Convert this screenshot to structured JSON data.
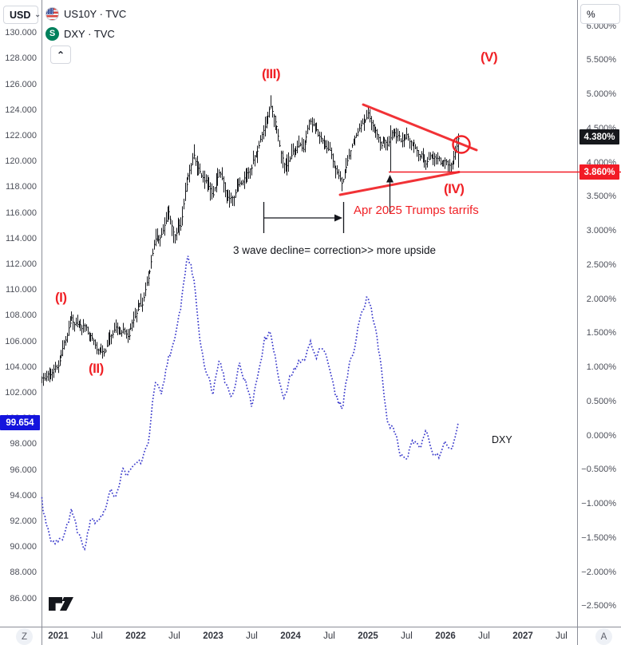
{
  "header": {
    "left_axis_unit_button": "USD",
    "right_axis_unit_button": "%",
    "icons": {
      "chevron_down": "⌄",
      "chevron_up": "⌃"
    }
  },
  "legend": {
    "items": [
      {
        "display": "US10Y · TVC",
        "icon": "us-flag-icon",
        "icon_text": ""
      },
      {
        "display": "DXY · TVC",
        "icon": "s-circle-icon",
        "icon_text": "S"
      }
    ]
  },
  "price_labels": {
    "us10y_last": "4.380%",
    "support": "3.860%",
    "dxy_last": "99.654"
  },
  "left_axis_ticks": [
    "130.000",
    "128.000",
    "126.000",
    "124.000",
    "122.000",
    "120.000",
    "118.000",
    "116.000",
    "114.000",
    "112.000",
    "110.000",
    "108.000",
    "106.000",
    "104.000",
    "102.000",
    "100.000",
    "98.000",
    "96.000",
    "94.000",
    "92.000",
    "90.000",
    "88.000",
    "86.000"
  ],
  "right_axis_ticks": [
    "6.000%",
    "5.500%",
    "5.000%",
    "4.500%",
    "4.000%",
    "3.500%",
    "3.000%",
    "2.500%",
    "2.000%",
    "1.500%",
    "1.000%",
    "0.500%",
    "0.000%",
    "−0.500%",
    "−1.000%",
    "−1.500%",
    "−2.000%",
    "−2.500%"
  ],
  "time_axis": {
    "left_button": "Z",
    "right_button": "A",
    "labels": [
      "2021",
      "Jul",
      "2022",
      "Jul",
      "2023",
      "Jul",
      "2024",
      "Jul",
      "2025",
      "Jul",
      "2026",
      "Jul",
      "2027",
      "Jul"
    ]
  },
  "annotations": {
    "wave_1": "(I)",
    "wave_2": "(II)",
    "wave_3": "(III)",
    "wave_4": "(IV)",
    "wave_5": "(V)",
    "tariff_note": "Apr 2025 Trumps tarrifs",
    "decline_note": "3 wave decline= correction>> more upside",
    "dxy_line_label": "DXY"
  },
  "colors": {
    "annotation_red": "#f02126",
    "label_red_bg": "#f21b26",
    "label_blue_bg": "#1414dd",
    "label_black_bg": "#16181c",
    "us10y_bars": "#16181c",
    "dxy_line": "#3d3dcc"
  },
  "chart_data": {
    "type": "line",
    "subtype": "overlay: US10Y hlc-bars (right % axis) + DXY dotted line (left USD axis)",
    "start_month": "2020-10",
    "frequency": "monthly",
    "x_visible_range": [
      "2020-10",
      "2027-09"
    ],
    "right_axis_range_pct": [
      -2.5,
      6.0
    ],
    "left_axis_range_usd": [
      86,
      130
    ],
    "grid": false,
    "series": [
      {
        "name": "US10Y",
        "axis": "right",
        "unit": "%",
        "style": "hlc-bar",
        "color": "#16181c",
        "values": [
          0.82,
          0.86,
          0.92,
          1.05,
          1.38,
          1.7,
          1.63,
          1.6,
          1.46,
          1.26,
          1.2,
          1.45,
          1.58,
          1.52,
          1.5,
          1.82,
          1.95,
          2.35,
          2.88,
          2.93,
          3.3,
          2.92,
          3.12,
          3.78,
          4.12,
          3.82,
          3.72,
          3.52,
          3.9,
          3.52,
          3.46,
          3.7,
          3.8,
          3.96,
          4.22,
          4.55,
          4.85,
          4.42,
          3.92,
          4.08,
          4.26,
          4.22,
          4.64,
          4.48,
          4.3,
          4.2,
          3.9,
          3.7,
          4.1,
          4.38,
          4.56,
          4.7,
          4.48,
          4.28,
          4.3,
          4.46,
          4.32,
          4.4,
          4.26,
          4.12,
          4.02,
          4.1,
          4.04,
          4.0,
          3.96,
          4.38
        ]
      },
      {
        "name": "DXY",
        "axis": "left",
        "unit": "USD",
        "style": "dotted-line",
        "color": "#3d3dcc",
        "values": [
          93.9,
          92.2,
          90.4,
          90.6,
          90.9,
          93.0,
          91.3,
          89.9,
          92.2,
          92.1,
          92.6,
          94.3,
          94.1,
          96.0,
          95.7,
          96.6,
          96.7,
          98.3,
          102.9,
          101.8,
          104.7,
          105.9,
          108.8,
          112.8,
          111.0,
          106.0,
          103.5,
          102.1,
          104.9,
          102.6,
          101.7,
          104.3,
          102.9,
          101.0,
          103.6,
          106.2,
          106.7,
          103.5,
          101.4,
          103.3,
          104.2,
          104.5,
          106.0,
          104.7,
          105.8,
          104.1,
          101.7,
          100.8,
          104.0,
          105.7,
          108.4,
          109.6,
          107.5,
          104.2,
          99.6,
          99.3,
          97.2,
          96.9,
          98.3,
          97.6,
          99.4,
          97.4,
          96.9,
          98.3,
          97.5,
          99.654
        ]
      }
    ],
    "events": [
      {
        "month": "2025-04",
        "label": "Apr 2025 Trumps tarrifs",
        "us10y_low": 3.86,
        "us10y_high": 4.55
      }
    ],
    "levels": [
      {
        "name": "support",
        "value_pct": 3.86,
        "style": "red horizontal line"
      }
    ],
    "last_values": {
      "US10Y_pct": 4.38,
      "DXY": 99.654
    },
    "elliott_waves": [
      "(I)",
      "(II)",
      "(III)",
      "(IV)",
      "(V)"
    ]
  }
}
